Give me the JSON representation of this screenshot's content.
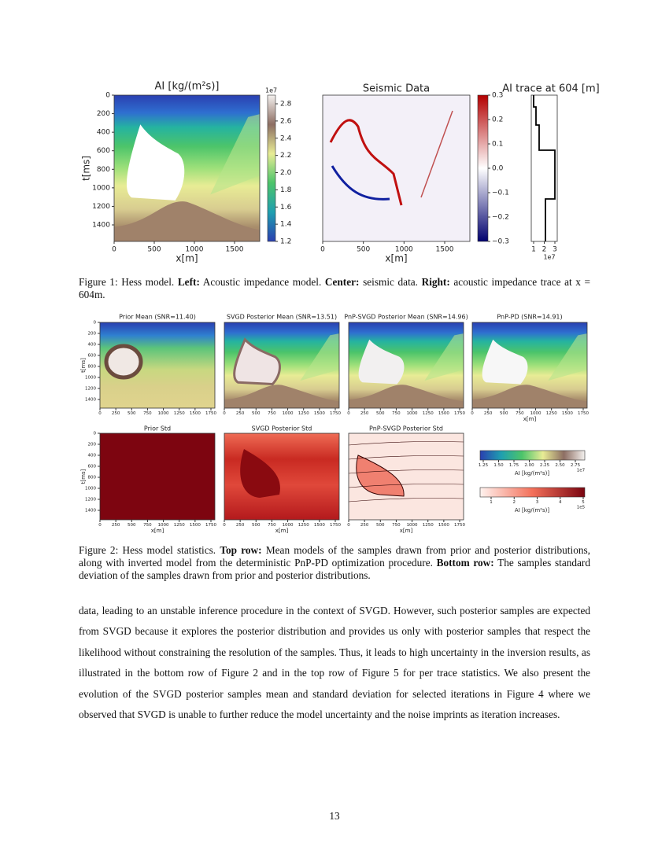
{
  "figure1": {
    "panels": [
      {
        "title": "AI [kg/(m²s)]",
        "yticks": [
          "0",
          "200",
          "400",
          "600",
          "800",
          "1000",
          "1200",
          "1400"
        ],
        "xticks": [
          "0",
          "500",
          "1000",
          "1500"
        ],
        "ylabel": "t[ms]",
        "xlabel": "x[m]",
        "colorbar_ticks": [
          "2.8",
          "2.6",
          "2.4",
          "2.2",
          "2.0",
          "1.8",
          "1.6",
          "1.4",
          "1.2"
        ],
        "colorbar_exponent": "1e7"
      },
      {
        "title": "Seismic Data",
        "xticks": [
          "0",
          "500",
          "1000",
          "1500"
        ],
        "xlabel": "x[m]",
        "colorbar_ticks": [
          "0.3",
          "0.2",
          "0.1",
          "0.0",
          "−0.1",
          "−0.2",
          "−0.3"
        ]
      },
      {
        "title": "AI trace at 604 [m]",
        "xticks": [
          "1",
          "2",
          "3"
        ],
        "x_exponent": "1e7"
      }
    ],
    "caption": {
      "label": "Figure 1: Hess model.",
      "parts": [
        {
          "head": "Left:",
          "text": "Acoustic impedance model."
        },
        {
          "head": "Center:",
          "text": "seismic data."
        },
        {
          "head": "Right:",
          "text": "acoustic impedance trace at x = 604m."
        }
      ]
    }
  },
  "figure2": {
    "top_row": [
      {
        "title": "Prior Mean (SNR=11.40)",
        "yticks": [
          "0",
          "200",
          "400",
          "600",
          "800",
          "1000",
          "1200",
          "1400"
        ],
        "ylabel": "t[ms]",
        "xticks": [
          "0",
          "250",
          "500",
          "750",
          "1000",
          "1250",
          "1500",
          "1750"
        ]
      },
      {
        "title": "SVGD Posterior Mean (SNR=13.51)",
        "xticks": [
          "0",
          "250",
          "500",
          "750",
          "1000",
          "1250",
          "1500",
          "1750"
        ]
      },
      {
        "title": "PnP-SVGD Posterior Mean (SNR=14.96)",
        "xticks": [
          "0",
          "250",
          "500",
          "750",
          "1000",
          "1250",
          "1500",
          "1750"
        ]
      },
      {
        "title": "PnP-PD (SNR=14.91)",
        "xticks": [
          "0",
          "250",
          "500",
          "750",
          "1000",
          "1250",
          "1500",
          "1750"
        ],
        "xlabel": "x[m]"
      }
    ],
    "bottom_row": [
      {
        "title": "Prior Std",
        "yticks": [
          "0",
          "200",
          "400",
          "600",
          "800",
          "1000",
          "1200",
          "1400"
        ],
        "ylabel": "t[ms]",
        "xticks": [
          "0",
          "250",
          "500",
          "750",
          "1000",
          "1250",
          "1500",
          "1750"
        ],
        "xlabel": "x[m]"
      },
      {
        "title": "SVGD Posterior Std",
        "xticks": [
          "0",
          "250",
          "500",
          "750",
          "1000",
          "1250",
          "1500",
          "1750"
        ],
        "xlabel": "x[m]"
      },
      {
        "title": "PnP-SVGD Posterior Std",
        "xticks": [
          "0",
          "250",
          "500",
          "750",
          "1000",
          "1250",
          "1500",
          "1750"
        ],
        "xlabel": "x[m]"
      }
    ],
    "colorbars": [
      {
        "ticks": [
          "1.25",
          "1.50",
          "1.75",
          "2.00",
          "2.25",
          "2.50",
          "2.75"
        ],
        "label": "AI [kg/(m²s)]",
        "exponent": "1e7"
      },
      {
        "ticks": [
          "1",
          "2",
          "3",
          "4",
          "5"
        ],
        "label": "AI [kg/(m²s)]",
        "exponent": "1e5"
      }
    ],
    "caption": {
      "label": "Figure 2: Hess model statistics.",
      "parts": [
        {
          "head": "Top row:",
          "text": "Mean models of the samples drawn from prior and posterior distributions, along with inverted model from the deterministic PnP-PD optimization procedure."
        },
        {
          "head": "Bottom row:",
          "text": "The samples standard deviation of the samples drawn from prior and posterior distributions."
        }
      ]
    }
  },
  "body": "data, leading to an unstable inference procedure in the context of SVGD. However, such posterior samples are expected from SVGD because it explores the posterior distribution and provides us only with posterior samples that respect the likelihood without constraining the resolution of the samples. Thus, it leads to high uncertainty in the inversion results, as illustrated in the bottom row of Figure 2 and in the top row of Figure 5 for per trace statistics. We also present the evolution of the SVGD posterior samples mean and standard deviation for selected iterations in Figure 4 where we observed that SVGD is unable to further reduce the model uncertainty and the noise imprints as iteration increases.",
  "page_number": "13"
}
